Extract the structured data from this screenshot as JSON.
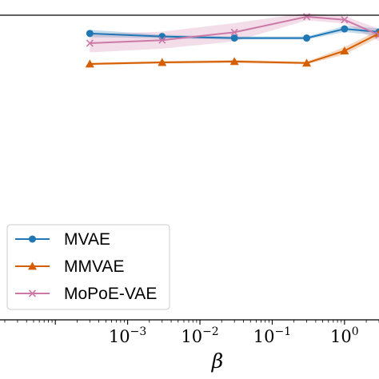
{
  "chart_data": {
    "type": "line",
    "xlabel": "β",
    "xscale": "log",
    "x": [
      0.0003,
      0.003,
      0.03,
      0.3,
      1,
      3
    ],
    "xlim": [
      2e-05,
      3
    ],
    "ylim": [
      0,
      1
    ],
    "xtick_labels": [
      {
        "value": 0.001,
        "base": "10",
        "exp": "−3"
      },
      {
        "value": 0.01,
        "base": "10",
        "exp": "−2"
      },
      {
        "value": 0.1,
        "base": "10",
        "exp": "−1"
      },
      {
        "value": 1,
        "base": "10",
        "exp": "0"
      }
    ],
    "grid": false,
    "legend_position": "lower-left",
    "series": [
      {
        "name": "MVAE",
        "color": "#1f77b4",
        "marker": "circle",
        "values": [
          0.94,
          0.93,
          0.925,
          0.925,
          0.955,
          0.945
        ],
        "band": [
          0.012,
          0.006,
          0.005,
          0.005,
          0.01,
          0.012
        ]
      },
      {
        "name": "MMVAE",
        "color": "#d55e00",
        "marker": "triangle",
        "values": [
          0.84,
          0.845,
          0.848,
          0.843,
          0.883,
          0.94
        ],
        "band": [
          0.004,
          0.004,
          0.005,
          0.004,
          0.012,
          0.012
        ]
      },
      {
        "name": "MoPoE-VAE",
        "color": "#cc79a7",
        "marker": "x",
        "values": [
          0.908,
          0.918,
          0.944,
          0.995,
          0.985,
          0.935
        ],
        "band": [
          0.03,
          0.028,
          0.03,
          0.012,
          0.012,
          0.02
        ]
      }
    ]
  }
}
